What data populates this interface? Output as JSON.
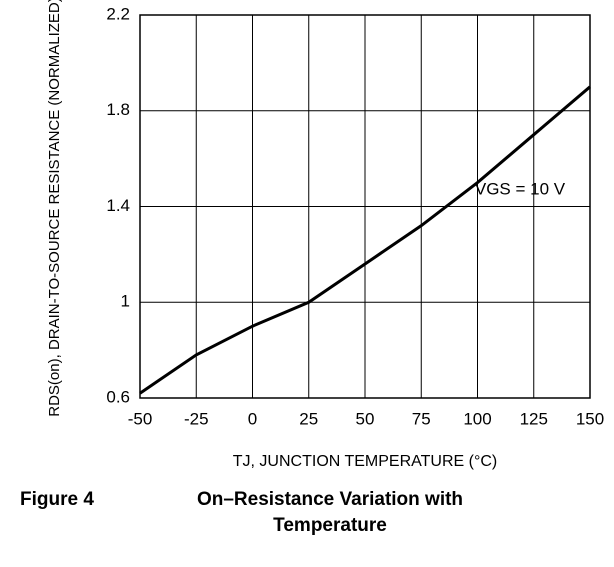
{
  "chart_data": {
    "type": "line",
    "figure_label": "Figure 4",
    "title_lines": [
      "On–Resistance Variation with",
      "Temperature"
    ],
    "x_label": "TJ, JUNCTION TEMPERATURE (°C)",
    "y_label": "RDS(on), DRAIN-TO-SOURCE RESISTANCE (NORMALIZED)",
    "annotation": "VGS = 10 V",
    "x": [
      -50,
      -25,
      0,
      25,
      50,
      75,
      100,
      125,
      150
    ],
    "series": [
      {
        "name": "RDS(on)",
        "color": "#000000",
        "values": [
          0.62,
          0.78,
          0.9,
          1.0,
          1.16,
          1.32,
          1.5,
          1.7,
          1.9
        ]
      }
    ],
    "xlim": [
      -50,
      150
    ],
    "xticks": [
      -50,
      -25,
      0,
      25,
      50,
      75,
      100,
      125,
      150
    ],
    "ylim": [
      0.6,
      2.2
    ],
    "yticks": [
      0.6,
      1.0,
      1.4,
      1.8,
      2.2
    ],
    "grid": true
  }
}
